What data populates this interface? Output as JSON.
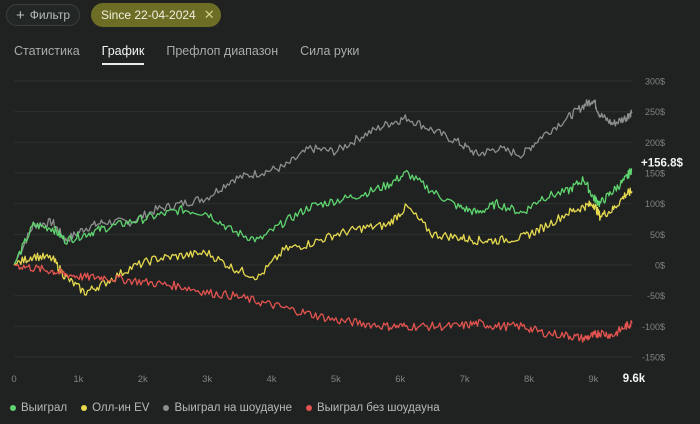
{
  "toolbar": {
    "filter_label": "Фильтр",
    "date_chip_label": "Since 22-04-2024",
    "chip_close_glyph": "✕"
  },
  "tabs": [
    {
      "label": "Статистика",
      "active": false
    },
    {
      "label": "График",
      "active": true
    },
    {
      "label": "Префлоп диапазон",
      "active": false
    },
    {
      "label": "Сила руки",
      "active": false
    }
  ],
  "chart_data": {
    "type": "line",
    "x_ticks": [
      "0",
      "1k",
      "2k",
      "3k",
      "4k",
      "5k",
      "6k",
      "7k",
      "8k",
      "9k"
    ],
    "x_max_label": "9.6k",
    "y_ticks": [
      "300$",
      "250$",
      "200$",
      "150$",
      "100$",
      "50$",
      "0$",
      "-50$",
      "-100$",
      "-150$"
    ],
    "xlim": [
      0,
      9600
    ],
    "ylim": [
      -150,
      300
    ],
    "current_value_label": "+156.8$",
    "series": [
      {
        "name": "Выиграл на шоудауне",
        "color": "#8c8f8d",
        "x": [
          0,
          300,
          600,
          800,
          1100,
          1400,
          1800,
          2200,
          2600,
          3000,
          3400,
          3800,
          4200,
          4600,
          5000,
          5400,
          5800,
          6100,
          6500,
          6900,
          7200,
          7500,
          7900,
          8200,
          8600,
          8850,
          9000,
          9100,
          9300,
          9500,
          9600
        ],
        "y": [
          0,
          65,
          70,
          40,
          60,
          70,
          70,
          90,
          100,
          110,
          140,
          150,
          160,
          190,
          185,
          210,
          230,
          240,
          220,
          200,
          180,
          190,
          180,
          210,
          240,
          260,
          270,
          245,
          230,
          240,
          250
        ]
      },
      {
        "name": "Выиграл",
        "color": "#5fd46f",
        "x": [
          0,
          300,
          600,
          800,
          1100,
          1400,
          1800,
          2200,
          2600,
          3000,
          3400,
          3800,
          4200,
          4600,
          5000,
          5400,
          5800,
          6100,
          6500,
          6900,
          7200,
          7500,
          7900,
          8200,
          8600,
          8850,
          9000,
          9100,
          9300,
          9500,
          9600
        ],
        "y": [
          0,
          65,
          60,
          40,
          50,
          60,
          70,
          80,
          90,
          85,
          55,
          40,
          70,
          95,
          105,
          115,
          130,
          150,
          120,
          95,
          85,
          100,
          85,
          110,
          120,
          140,
          110,
          100,
          120,
          140,
          157
        ]
      },
      {
        "name": "Олл-ин EV",
        "color": "#e6d94f",
        "x": [
          0,
          300,
          600,
          800,
          1100,
          1400,
          1800,
          2200,
          2600,
          3000,
          3400,
          3800,
          4200,
          4600,
          5000,
          5400,
          5800,
          6100,
          6500,
          6900,
          7200,
          7500,
          7900,
          8200,
          8600,
          8850,
          9000,
          9100,
          9300,
          9500,
          9600
        ],
        "y": [
          0,
          15,
          10,
          -20,
          -45,
          -30,
          -5,
          10,
          15,
          20,
          -5,
          -20,
          25,
          35,
          50,
          60,
          65,
          95,
          50,
          45,
          40,
          40,
          45,
          60,
          85,
          95,
          100,
          80,
          90,
          115,
          120
        ]
      },
      {
        "name": "Выиграл без шоудауна",
        "color": "#e2534f",
        "x": [
          0,
          300,
          600,
          800,
          1100,
          1400,
          1800,
          2200,
          2600,
          3000,
          3400,
          3800,
          4200,
          4600,
          5000,
          5400,
          5800,
          6100,
          6500,
          6900,
          7200,
          7500,
          7900,
          8200,
          8600,
          8850,
          9000,
          9100,
          9300,
          9500,
          9600
        ],
        "y": [
          0,
          -5,
          -10,
          -15,
          -20,
          -20,
          -25,
          -30,
          -35,
          -45,
          -50,
          -60,
          -70,
          -80,
          -90,
          -95,
          -100,
          -100,
          -100,
          -100,
          -95,
          -100,
          -100,
          -110,
          -115,
          -120,
          -115,
          -110,
          -115,
          -100,
          -95
        ]
      }
    ]
  },
  "legend": [
    {
      "label": "Выиграл",
      "color": "#5fd46f"
    },
    {
      "label": "Олл-ин EV",
      "color": "#e6d94f"
    },
    {
      "label": "Выиграл на шоудауне",
      "color": "#8c8f8d"
    },
    {
      "label": "Выиграл без шоудауна",
      "color": "#e2534f"
    }
  ]
}
